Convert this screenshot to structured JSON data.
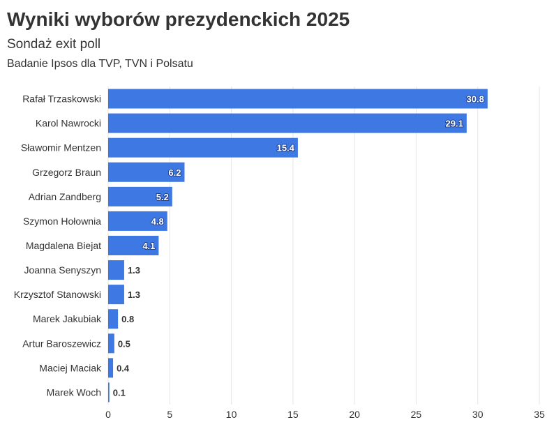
{
  "chart_data": {
    "type": "bar",
    "orientation": "horizontal",
    "title": "Wyniki wyborów prezydenckich 2025",
    "subtitle": "Sondaż exit poll",
    "description": "Badanie Ipsos dla TVP, TVN i Polsatu",
    "categories": [
      "Rafał Trzaskowski",
      "Karol Nawrocki",
      "Sławomir Mentzen",
      "Grzegorz Braun",
      "Adrian Zandberg",
      "Szymon Hołownia",
      "Magdalena Biejat",
      "Joanna Senyszyn",
      "Krzysztof Stanowski",
      "Marek Jakubiak",
      "Artur Baroszewicz",
      "Maciej Maciak",
      "Marek Woch"
    ],
    "values": [
      30.8,
      29.1,
      15.4,
      6.2,
      5.2,
      4.8,
      4.1,
      1.3,
      1.3,
      0.8,
      0.5,
      0.4,
      0.1
    ],
    "value_labels": [
      "30.8",
      "29.1",
      "15.4",
      "6.2",
      "5.2",
      "4.8",
      "4.1",
      "1.3",
      "1.3",
      "0.8",
      "0.5",
      "0.4",
      "0.1"
    ],
    "xlim": [
      0,
      35
    ],
    "x_ticks": [
      0,
      5,
      10,
      15,
      20,
      25,
      30,
      35
    ],
    "x_tick_labels": [
      "0",
      "5",
      "10",
      "15",
      "20",
      "25",
      "30",
      "35"
    ],
    "grid": true,
    "bar_color": "#3d78e3",
    "grid_color": "#e6e6e6"
  }
}
